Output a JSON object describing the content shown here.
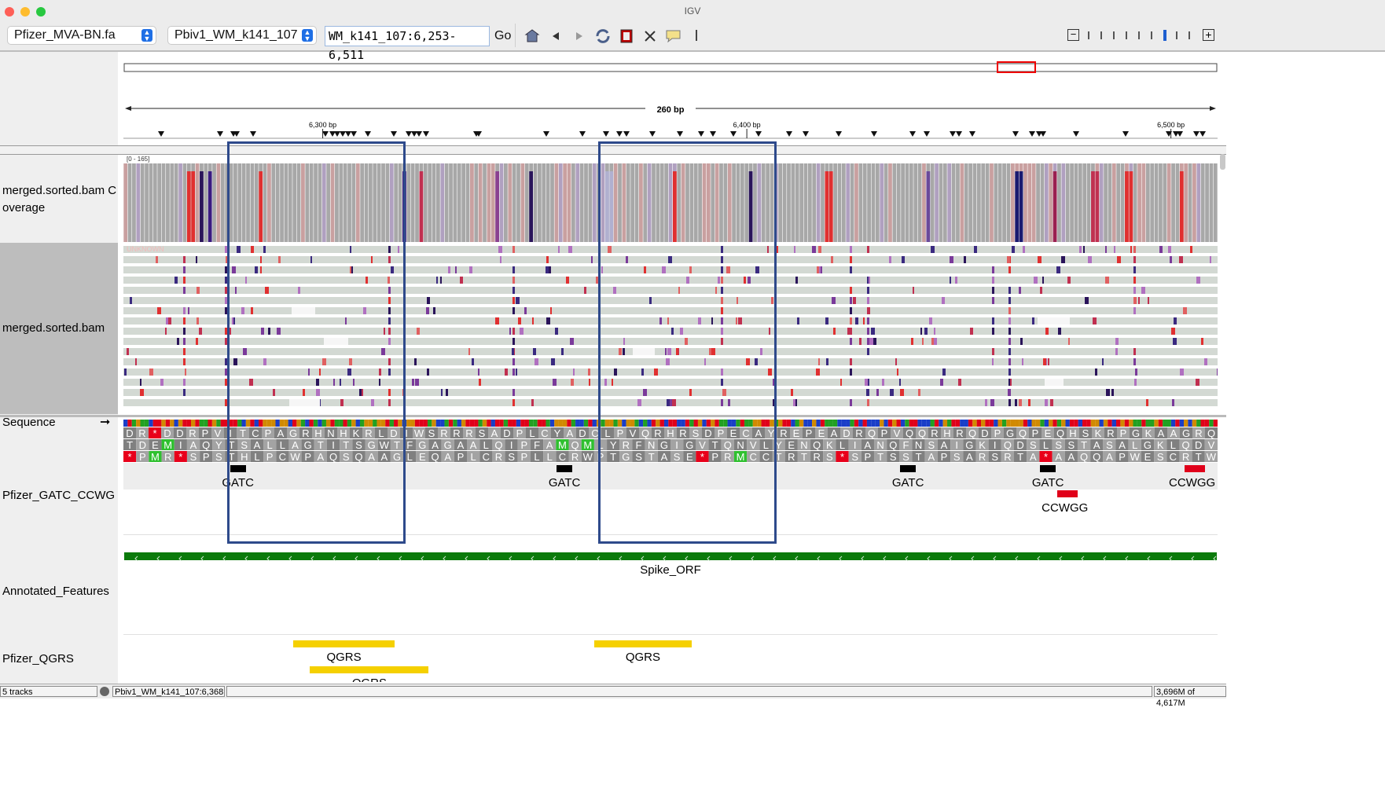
{
  "window": {
    "title": "IGV"
  },
  "toolbar": {
    "genome": "Pfizer_MVA-BN.fa",
    "chromosome": "Pbiv1_WM_k141_107",
    "locus": "WM_k141_107:6,253-6,511",
    "go_label": "Go",
    "icons": [
      "home-icon",
      "back-icon",
      "forward-icon",
      "refresh-icon",
      "roi-icon",
      "fit-icon",
      "popup-icon"
    ],
    "zoom_out": "−",
    "zoom_in": "+",
    "zoom_ticks": 9,
    "zoom_level_index": 6
  },
  "ruler": {
    "span_label": "260 bp",
    "ticks": [
      {
        "bp": 6300,
        "label": "6,300 bp"
      },
      {
        "bp": 6400,
        "label": "6,400 bp"
      },
      {
        "bp": 6500,
        "label": "6,500 bp"
      }
    ],
    "start_bp": 6253,
    "end_bp": 6511
  },
  "tracks": [
    {
      "id": "coverage",
      "name": "merged.sorted.bam Coverage",
      "range_label": "[0 - 165]"
    },
    {
      "id": "alignments",
      "name": "merged.sorted.bam",
      "unknown_label": "UNKNOWN"
    },
    {
      "id": "sequence",
      "name": "Sequence",
      "strand_arrow": "➞"
    },
    {
      "id": "gatc",
      "name": "Pfizer_GATC_CCWG"
    },
    {
      "id": "annot",
      "name": "Annotated_Features"
    },
    {
      "id": "qgrs",
      "name": "Pfizer_QGRS"
    }
  ],
  "translation": {
    "frame1": "DR*DDRPVITCPAGRHNHKRLDIWSRRRSADPLCYADCLPVQRHRSDPECAYREPEADRQPVQQRHRQDPGQPEQHSKRPGKAAGRQ",
    "frame2": "TDEMIAQYTSALLAGTITSGWTFGAGAALQIPFAMQMLYRFNGIGVTQNVLYENQKLIANQFNSAIGKIQDSLSSTASALGKLQDV",
    "frame3": "*PMR*SPSTHLPCWPAQSQAAGLEQAPLCRSPLLCRWPTGSTASE*PRMCCTRTRS*SPTSSTAPSARSRTA*AAQQAPWESCRTW"
  },
  "gatc_features": [
    {
      "label": "GATC",
      "bp": 6280,
      "row": 0,
      "color": "#000000"
    },
    {
      "label": "GATC",
      "bp": 6357,
      "row": 0,
      "color": "#000000"
    },
    {
      "label": "GATC",
      "bp": 6438,
      "row": 0,
      "color": "#000000"
    },
    {
      "label": "GATC",
      "bp": 6471,
      "row": 0,
      "color": "#000000"
    },
    {
      "label": "CCWGG",
      "bp": 6505,
      "row": 0,
      "color": "#e0001a"
    },
    {
      "label": "CCWGG",
      "bp": 6475,
      "row": 1,
      "color": "#e0001a"
    }
  ],
  "annotated_features": [
    {
      "label": "Spike_ORF",
      "strand": "-",
      "color": "#0b7a0b"
    }
  ],
  "qgrs_features": [
    {
      "label": "QGRS",
      "start_bp": 6293,
      "end_bp": 6317,
      "row": 0
    },
    {
      "label": "QGRS",
      "start_bp": 6364,
      "end_bp": 6387,
      "row": 0
    },
    {
      "label": "QGRS",
      "start_bp": 6297,
      "end_bp": 6325,
      "row": 1
    }
  ],
  "status": {
    "tracks": "5 tracks",
    "position": "Pbiv1_WM_k141_107:6,368",
    "memory": "3,696M of 4,617M"
  },
  "colors": {
    "highlight": "#2e4a8b",
    "mismatch_A": "#22a022",
    "mismatch_T": "#e0001a",
    "mismatch_C": "#1a3ec8",
    "mismatch_G": "#d18a00"
  }
}
